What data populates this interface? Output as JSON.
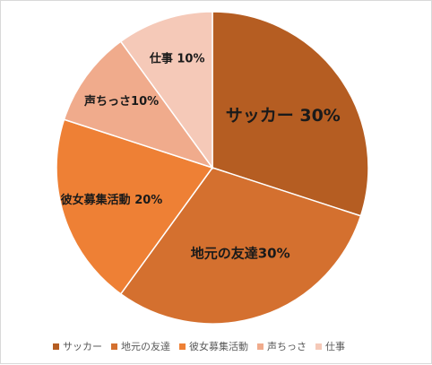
{
  "chart_data": {
    "type": "pie",
    "start_angle_deg": 0,
    "direction": "clockwise",
    "legend_position": "bottom",
    "slices": [
      {
        "name": "サッカー",
        "value": 30,
        "label": "サッカー  30%",
        "color": "#B55D22"
      },
      {
        "name": "地元の友達",
        "value": 30,
        "label": "地元の友達30%",
        "color": "#D4702F"
      },
      {
        "name": "彼女募集活動",
        "value": 20,
        "label": "彼女募集活動 20%",
        "color": "#EE8035"
      },
      {
        "name": "声ちっさ",
        "value": 10,
        "label": "声ちっさ10%",
        "color": "#F0AB8C"
      },
      {
        "name": "仕事",
        "value": 10,
        "label": "仕事 10%",
        "color": "#F5C9B8"
      }
    ]
  }
}
